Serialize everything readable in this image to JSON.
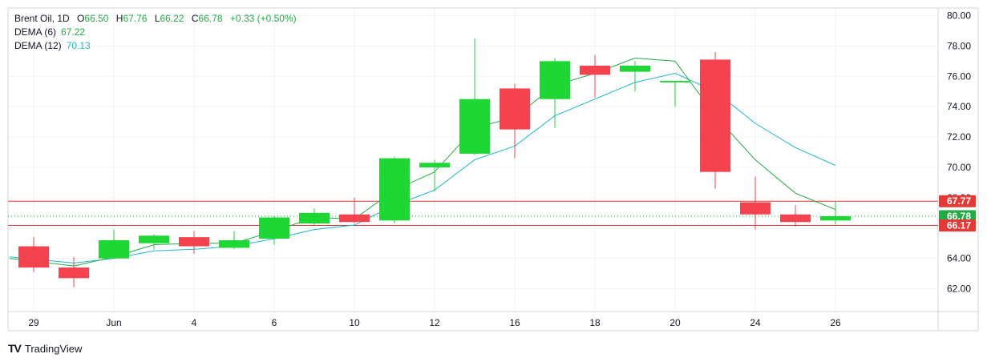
{
  "legend": {
    "symbol": "Brent Oil, 1D",
    "o_label": "O",
    "o_val": "66.50",
    "h_label": "H",
    "h_val": "67.76",
    "l_label": "L",
    "l_val": "66.22",
    "c_label": "C",
    "c_val": "66.78",
    "change": "+0.33 (+0.50%)",
    "dema6_label": "DEMA (6)",
    "dema6_val": "67.22",
    "dema12_label": "DEMA (12)",
    "dema12_val": "70.13"
  },
  "brand": {
    "logo": "TV",
    "name": "TradingView"
  },
  "colors": {
    "up": "#1ed634",
    "down": "#f5424f",
    "dema6": "#22ab43",
    "dema12": "#1fb8cf",
    "level": "#e53935",
    "last": "#22ab43"
  },
  "chart_data": {
    "type": "candlestick",
    "ylim": [
      60.5,
      80.5
    ],
    "y_ticks": [
      "62.00",
      "64.00",
      "66.00",
      "68.00",
      "70.00",
      "72.00",
      "74.00",
      "76.00",
      "78.00",
      "80.00"
    ],
    "x_ticks": [
      {
        "label": "29",
        "day": 0
      },
      {
        "label": "Jun",
        "day": 2
      },
      {
        "label": "4",
        "day": 4
      },
      {
        "label": "6",
        "day": 6
      },
      {
        "label": "10",
        "day": 8
      },
      {
        "label": "12",
        "day": 10
      },
      {
        "label": "16",
        "day": 12
      },
      {
        "label": "18",
        "day": 14
      },
      {
        "label": "20",
        "day": 16
      },
      {
        "label": "24",
        "day": 18
      },
      {
        "label": "26",
        "day": 20
      }
    ],
    "candles": [
      {
        "o": 64.8,
        "h": 65.4,
        "l": 63.1,
        "c": 63.4
      },
      {
        "o": 63.4,
        "h": 64.1,
        "l": 62.1,
        "c": 62.7
      },
      {
        "o": 64.0,
        "h": 65.9,
        "l": 64.0,
        "c": 65.2
      },
      {
        "o": 65.0,
        "h": 65.6,
        "l": 64.6,
        "c": 65.5
      },
      {
        "o": 65.4,
        "h": 65.8,
        "l": 64.3,
        "c": 64.8
      },
      {
        "o": 64.7,
        "h": 65.8,
        "l": 64.6,
        "c": 65.2
      },
      {
        "o": 65.3,
        "h": 66.8,
        "l": 64.9,
        "c": 66.7
      },
      {
        "o": 66.3,
        "h": 67.3,
        "l": 66.2,
        "c": 67.0
      },
      {
        "o": 66.9,
        "h": 68.0,
        "l": 66.3,
        "c": 66.4
      },
      {
        "o": 66.5,
        "h": 70.7,
        "l": 66.3,
        "c": 70.6
      },
      {
        "o": 70.0,
        "h": 70.5,
        "l": 68.4,
        "c": 70.3
      },
      {
        "o": 70.9,
        "h": 78.5,
        "l": 70.8,
        "c": 74.5
      },
      {
        "o": 75.2,
        "h": 75.5,
        "l": 70.6,
        "c": 72.5
      },
      {
        "o": 74.5,
        "h": 77.2,
        "l": 72.6,
        "c": 77.0
      },
      {
        "o": 76.7,
        "h": 77.4,
        "l": 74.6,
        "c": 76.1
      },
      {
        "o": 76.3,
        "h": 77.0,
        "l": 75.0,
        "c": 76.7
      },
      {
        "o": 75.6,
        "h": 75.7,
        "l": 74.0,
        "c": 75.7
      },
      {
        "o": 77.1,
        "h": 77.6,
        "l": 68.6,
        "c": 69.7
      },
      {
        "o": 67.7,
        "h": 69.4,
        "l": 65.9,
        "c": 66.9
      },
      {
        "o": 66.9,
        "h": 67.5,
        "l": 66.1,
        "c": 66.4
      },
      {
        "o": 66.5,
        "h": 67.76,
        "l": 66.22,
        "c": 66.78
      }
    ],
    "dema6": [
      64.0,
      63.5,
      64.1,
      64.9,
      65.0,
      65.0,
      65.8,
      66.7,
      66.6,
      68.5,
      69.7,
      72.6,
      73.3,
      75.4,
      76.2,
      77.2,
      77.0,
      73.4,
      70.5,
      68.3,
      67.22
    ],
    "dema12": [
      64.1,
      63.7,
      64.0,
      64.5,
      64.6,
      64.8,
      65.3,
      65.9,
      66.2,
      67.5,
      68.5,
      70.5,
      71.4,
      73.4,
      74.5,
      75.6,
      76.2,
      75.0,
      72.9,
      71.3,
      70.13
    ],
    "dema_x_start": -0.6,
    "levels": [
      {
        "label": "67.77",
        "value": 67.77,
        "kind": "line-red"
      },
      {
        "label": "66.78",
        "value": 66.78,
        "kind": "last"
      },
      {
        "label": "66.17",
        "value": 66.17,
        "kind": "line-red"
      }
    ]
  }
}
